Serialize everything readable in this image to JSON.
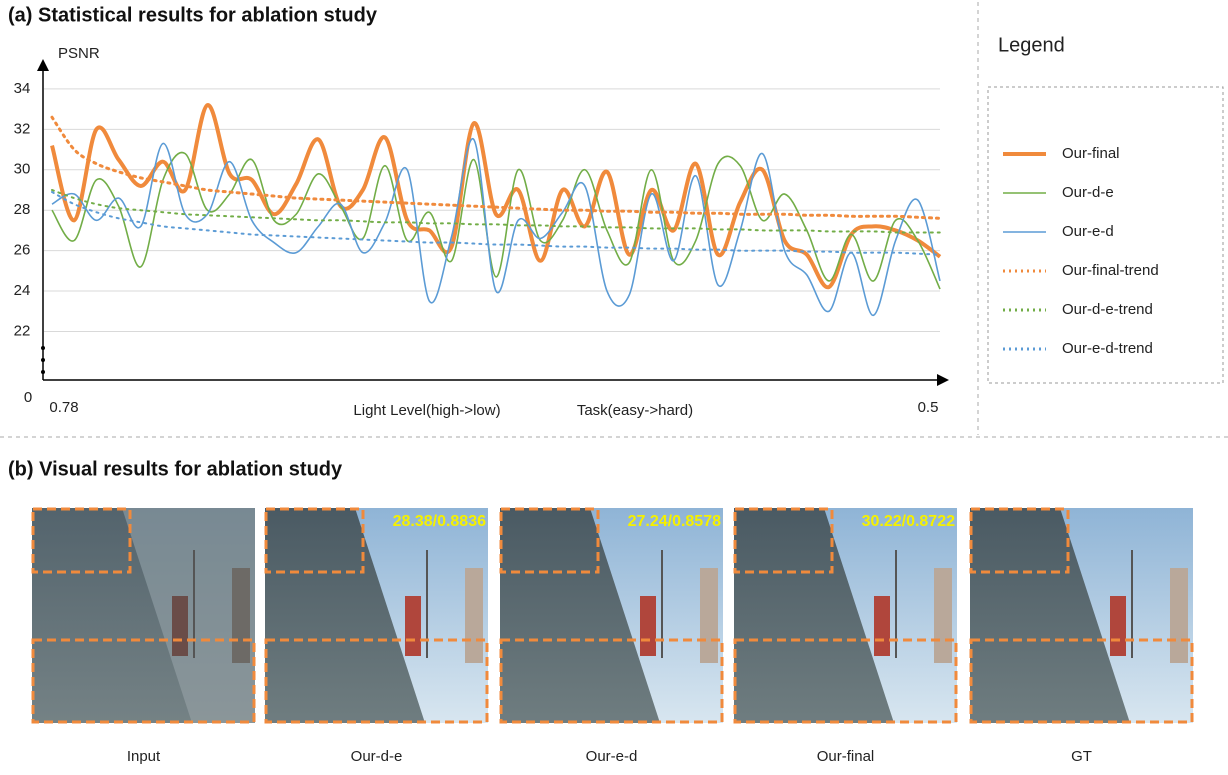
{
  "chart_data": {
    "type": "line",
    "title": "(a) Statistical results for ablation study",
    "ylabel": "PSNR",
    "xlabel": "Light Level(high->low)",
    "xlabel2": "Task(easy->hard)",
    "origin_label": "0",
    "legend_title": "Legend",
    "x": [
      0.78,
      0.773,
      0.766,
      0.759,
      0.752,
      0.745,
      0.738,
      0.731,
      0.724,
      0.717,
      0.71,
      0.703,
      0.696,
      0.689,
      0.682,
      0.675,
      0.668,
      0.661,
      0.654,
      0.647,
      0.64,
      0.633,
      0.626,
      0.619,
      0.612,
      0.605,
      0.598,
      0.591,
      0.584,
      0.577,
      0.57,
      0.563,
      0.556,
      0.549,
      0.542,
      0.535,
      0.528,
      0.521,
      0.514,
      0.507,
      0.5
    ],
    "xlim": [
      0.78,
      0.5
    ],
    "xticks": [
      0.78,
      0.5
    ],
    "ylim": [
      19.6,
      35.5
    ],
    "yticks": [
      22,
      24,
      26,
      28,
      30,
      32,
      34
    ],
    "grid": true,
    "series": [
      {
        "name": "Our-final",
        "color": "#f08a3c",
        "width": 4,
        "dashed": false,
        "smooth": true,
        "values": [
          31.2,
          27.5,
          32.0,
          30.5,
          29.2,
          30.4,
          29.0,
          33.2,
          29.8,
          29.5,
          27.8,
          29.3,
          31.5,
          28.2,
          29.0,
          31.6,
          27.5,
          27.0,
          26.2,
          32.3,
          27.8,
          29.0,
          25.5,
          29.0,
          27.2,
          29.9,
          25.8,
          29.0,
          27.0,
          30.3,
          25.8,
          28.4,
          30.0,
          26.5,
          25.8,
          24.2,
          26.8,
          27.2,
          27.0,
          26.5,
          25.7
        ]
      },
      {
        "name": "Our-d-e",
        "color": "#72ad47",
        "width": 1.6,
        "dashed": false,
        "smooth": true,
        "values": [
          28.0,
          26.5,
          29.5,
          28.2,
          25.2,
          29.5,
          30.8,
          28.0,
          28.8,
          30.5,
          27.5,
          27.8,
          29.8,
          28.2,
          26.6,
          30.2,
          26.5,
          27.9,
          25.5,
          30.5,
          24.7,
          30.0,
          26.5,
          27.5,
          30.0,
          27.0,
          25.4,
          30.0,
          25.5,
          26.5,
          30.3,
          30.2,
          27.5,
          28.8,
          27.0,
          24.5,
          26.8,
          24.5,
          27.5,
          26.5,
          24.1
        ]
      },
      {
        "name": "Our-e-d",
        "color": "#5b9bd5",
        "width": 1.6,
        "dashed": false,
        "smooth": true,
        "values": [
          28.3,
          28.8,
          27.5,
          28.6,
          27.2,
          31.3,
          27.8,
          27.8,
          30.4,
          27.5,
          26.4,
          25.9,
          27.2,
          28.3,
          25.9,
          27.4,
          30.0,
          23.5,
          26.7,
          31.5,
          24.0,
          27.5,
          26.6,
          27.9,
          29.2,
          24.0,
          23.8,
          28.8,
          25.5,
          29.7,
          24.3,
          27.0,
          30.8,
          26.0,
          24.8,
          23.0,
          25.9,
          22.8,
          26.5,
          28.5,
          24.5
        ]
      },
      {
        "name": "Our-final-trend",
        "color": "#f08a3c",
        "width": 3,
        "dashed": true,
        "smooth": true,
        "values": [
          32.6,
          31.0,
          30.3,
          29.9,
          29.6,
          29.4,
          29.2,
          29.0,
          28.9,
          28.8,
          28.7,
          28.6,
          28.55,
          28.5,
          28.45,
          28.4,
          28.35,
          28.3,
          28.25,
          28.2,
          28.15,
          28.1,
          28.05,
          28.0,
          28.0,
          27.95,
          27.95,
          27.9,
          27.9,
          27.85,
          27.85,
          27.8,
          27.8,
          27.8,
          27.75,
          27.75,
          27.7,
          27.7,
          27.7,
          27.65,
          27.6
        ]
      },
      {
        "name": "Our-d-e-trend",
        "color": "#72ad47",
        "width": 2,
        "dashed": true,
        "smooth": true,
        "values": [
          29.0,
          28.6,
          28.3,
          28.1,
          28.0,
          27.9,
          27.8,
          27.75,
          27.7,
          27.65,
          27.6,
          27.55,
          27.5,
          27.5,
          27.45,
          27.4,
          27.4,
          27.35,
          27.35,
          27.3,
          27.3,
          27.25,
          27.25,
          27.2,
          27.2,
          27.15,
          27.15,
          27.1,
          27.1,
          27.1,
          27.05,
          27.05,
          27.0,
          27.0,
          27.0,
          26.95,
          26.95,
          26.95,
          26.9,
          26.9,
          26.9
        ]
      },
      {
        "name": "Our-e-d-trend",
        "color": "#5b9bd5",
        "width": 2,
        "dashed": true,
        "smooth": true,
        "values": [
          28.9,
          28.3,
          27.9,
          27.6,
          27.4,
          27.2,
          27.1,
          27.0,
          26.9,
          26.8,
          26.75,
          26.7,
          26.65,
          26.6,
          26.55,
          26.5,
          26.45,
          26.4,
          26.4,
          26.35,
          26.3,
          26.3,
          26.25,
          26.2,
          26.2,
          26.15,
          26.15,
          26.1,
          26.1,
          26.05,
          26.05,
          26.0,
          26.0,
          26.0,
          25.95,
          25.95,
          25.9,
          25.9,
          25.9,
          25.85,
          25.8
        ]
      }
    ]
  },
  "visual": {
    "title": "(b) Visual results for ablation study",
    "panels": [
      {
        "caption": "Input"
      },
      {
        "caption": "Our-d-e",
        "metrics": "28.38/0.8836"
      },
      {
        "caption": "Our-e-d",
        "metrics": "27.24/0.8578"
      },
      {
        "caption": "Our-final",
        "metrics": "30.22/0.8722"
      },
      {
        "caption": "GT"
      }
    ]
  }
}
